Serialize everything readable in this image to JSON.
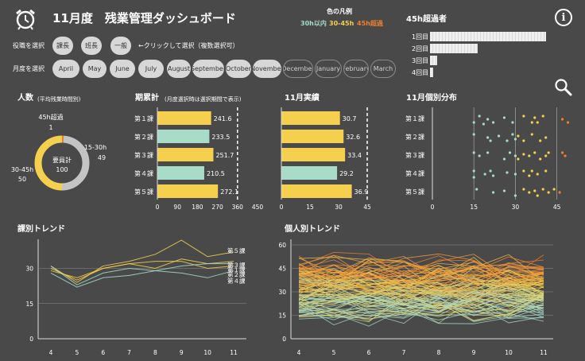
{
  "header": {
    "title": "11月度　残業管理ダッシュボード",
    "legend_title": "色の凡例",
    "legend_items": [
      {
        "label": "30h以内",
        "color": "#a8dcc9"
      },
      {
        "label": "30-45h",
        "color": "#f5d04e"
      },
      {
        "label": "45h超過",
        "color": "#f07e2e"
      }
    ],
    "info_icon": "info-icon",
    "alarm_icon": "alarm-clock-icon",
    "search_icon": "search-icon"
  },
  "filters": {
    "role_label": "役職を選択",
    "roles": [
      "課長",
      "班長",
      "一般"
    ],
    "role_hint": "←クリックして選択（複数選択可）",
    "month_label": "月度を選択",
    "months": [
      "April",
      "May",
      "June",
      "July",
      "August",
      "September",
      "October",
      "November",
      "December",
      "January",
      "February",
      "March"
    ],
    "months_active": 8
  },
  "over45": {
    "title": "45h超過者",
    "rows": [
      {
        "label": "1回目",
        "value": 1.0
      },
      {
        "label": "2回目",
        "value": 0.41
      },
      {
        "label": "3回目",
        "value": 0.06
      },
      {
        "label": "4回目",
        "value": 0.03
      }
    ]
  },
  "colors": {
    "teal": "#a8dcc9",
    "yellow": "#f5d04e",
    "orange": "#f07e2e",
    "gray": "#c4c4c4",
    "bg": "#494949"
  },
  "chart_data": [
    {
      "id": "headcount",
      "type": "pie",
      "title": "人数",
      "subtitle": "(平均残業時間別)",
      "center_label": "要員計",
      "center_value": "100",
      "slices": [
        {
          "name": "45h超過",
          "value": 1,
          "color": "#f07e2e"
        },
        {
          "name": "15-30h",
          "value": 49,
          "color": "#c4c4c4"
        },
        {
          "name": "30-45h",
          "value": 50,
          "color": "#f5d04e"
        }
      ],
      "slice_values": [
        "1",
        "49",
        "50"
      ]
    },
    {
      "id": "cumulative",
      "type": "bar",
      "title": "期累計",
      "subtitle": "(月度選択時は選択期間で表示)",
      "categories": [
        "第１課",
        "第２課",
        "第３課",
        "第４課",
        "第５課"
      ],
      "values": [
        241.6,
        233.5,
        251.7,
        210.5,
        272.1
      ],
      "value_labels": [
        "241.6",
        "233.5",
        "251.7",
        "210.5",
        "272.1"
      ],
      "colors": [
        "#f5d04e",
        "#a8dcc9",
        "#f5d04e",
        "#a8dcc9",
        "#f5d04e"
      ],
      "xlim": [
        0,
        450
      ],
      "ticks": [
        "0",
        "90",
        "180",
        "270",
        "360",
        "450"
      ],
      "reference_line": 360
    },
    {
      "id": "november",
      "type": "bar",
      "title": "11月実績",
      "categories": [
        "第１課",
        "第２課",
        "第３課",
        "第４課",
        "第５課"
      ],
      "values": [
        30.7,
        32.6,
        33.4,
        29.2,
        36.9
      ],
      "value_labels": [
        "30.7",
        "32.6",
        "33.4",
        "29.2",
        "36.9"
      ],
      "colors": [
        "#f5d04e",
        "#f5d04e",
        "#f5d04e",
        "#a8dcc9",
        "#f5d04e"
      ],
      "xlim": [
        0,
        50
      ],
      "ticks": [
        "0",
        "15",
        "30",
        "45"
      ],
      "reference_line": 45
    },
    {
      "id": "distribution",
      "type": "scatter",
      "title": "11月個別分布",
      "categories": [
        "第１課",
        "第２課",
        "第３課",
        "第４課",
        "第５課"
      ],
      "xlim": [
        0,
        50
      ],
      "ticks": [
        "0",
        "15",
        "30",
        "45"
      ],
      "points": [
        [
          [
            15,
            0.3
          ],
          [
            17,
            0.1
          ],
          [
            18.5,
            0.35
          ],
          [
            20,
            0.2
          ],
          [
            22,
            0.3
          ],
          [
            26,
            0.15
          ],
          [
            29,
            0.3
          ],
          [
            33,
            0.1
          ],
          [
            36,
            0.3
          ],
          [
            37,
            0.15
          ],
          [
            38,
            0.3
          ],
          [
            40,
            0.1
          ],
          [
            47,
            0.2
          ],
          [
            49,
            0.3
          ]
        ],
        [
          [
            15,
            0.1
          ],
          [
            20,
            0.2
          ],
          [
            21,
            0.3
          ],
          [
            24,
            0.15
          ],
          [
            27,
            0.3
          ],
          [
            29,
            0.1
          ],
          [
            30,
            0.25
          ],
          [
            31,
            0.15
          ],
          [
            33,
            0.3
          ],
          [
            36,
            0.1
          ],
          [
            39,
            0.3
          ],
          [
            41,
            0.2
          ]
        ],
        [
          [
            15,
            0.1
          ],
          [
            17,
            0.2
          ],
          [
            20,
            0.1
          ],
          [
            26,
            0.3
          ],
          [
            28,
            0.1
          ],
          [
            30,
            0.2
          ],
          [
            31,
            0.3
          ],
          [
            33,
            0.15
          ],
          [
            35,
            0.2
          ],
          [
            37,
            0.1
          ],
          [
            39,
            0.3
          ],
          [
            41,
            0.2
          ],
          [
            42,
            0.1
          ],
          [
            47,
            0.1
          ],
          [
            48,
            0.2
          ]
        ],
        [
          [
            15,
            0.1
          ],
          [
            15,
            0.3
          ],
          [
            19,
            0.2
          ],
          [
            21,
            0.1
          ],
          [
            22,
            0.25
          ],
          [
            27,
            0.15
          ],
          [
            30,
            0.2
          ],
          [
            33,
            0.1
          ],
          [
            35,
            0.25
          ],
          [
            36,
            0.1
          ],
          [
            38,
            0.2
          ],
          [
            41,
            0.1
          ]
        ],
        [
          [
            16,
            0.1
          ],
          [
            22,
            0.2
          ],
          [
            26,
            0.15
          ],
          [
            30,
            0.3
          ],
          [
            33,
            0.1
          ],
          [
            35,
            0.2
          ],
          [
            37,
            0.15
          ],
          [
            38,
            0.3
          ],
          [
            40,
            0.1
          ],
          [
            42,
            0.2
          ],
          [
            44,
            0.1
          ],
          [
            46,
            0.2
          ]
        ]
      ]
    },
    {
      "id": "dept_trend",
      "type": "line",
      "title": "課別トレンド",
      "x": [
        "4",
        "5",
        "6",
        "7",
        "8",
        "9",
        "10",
        "11"
      ],
      "ylim": [
        0,
        40
      ],
      "yticks": [
        "0",
        "15",
        "30"
      ],
      "series": [
        {
          "name": "第５課",
          "values": [
            31,
            24,
            31,
            33,
            36,
            42,
            35,
            37
          ],
          "color": "#f5d04e"
        },
        {
          "name": "第３課",
          "values": [
            30,
            25,
            30,
            32,
            30,
            34,
            32,
            33
          ],
          "color": "#f5d04e"
        },
        {
          "name": "第１課",
          "values": [
            29,
            26,
            30,
            32,
            33,
            33,
            30,
            31
          ],
          "color": "#f5d04e"
        },
        {
          "name": "第２課",
          "values": [
            31,
            23,
            28,
            30,
            29,
            31,
            32,
            32
          ],
          "color": "#a8dcc9"
        },
        {
          "name": "第４課",
          "values": [
            28,
            22,
            26,
            27,
            29,
            28,
            26,
            29
          ],
          "color": "#a8dcc9"
        }
      ]
    },
    {
      "id": "person_trend",
      "type": "line",
      "title": "個人別トレンド",
      "x": [
        "4",
        "5",
        "6",
        "7",
        "8",
        "9",
        "10",
        "11"
      ],
      "ylim": [
        0,
        60
      ],
      "yticks": [
        "0",
        "15",
        "30",
        "45",
        "60"
      ],
      "series_count": 100,
      "series_range": [
        6,
        58
      ]
    }
  ]
}
